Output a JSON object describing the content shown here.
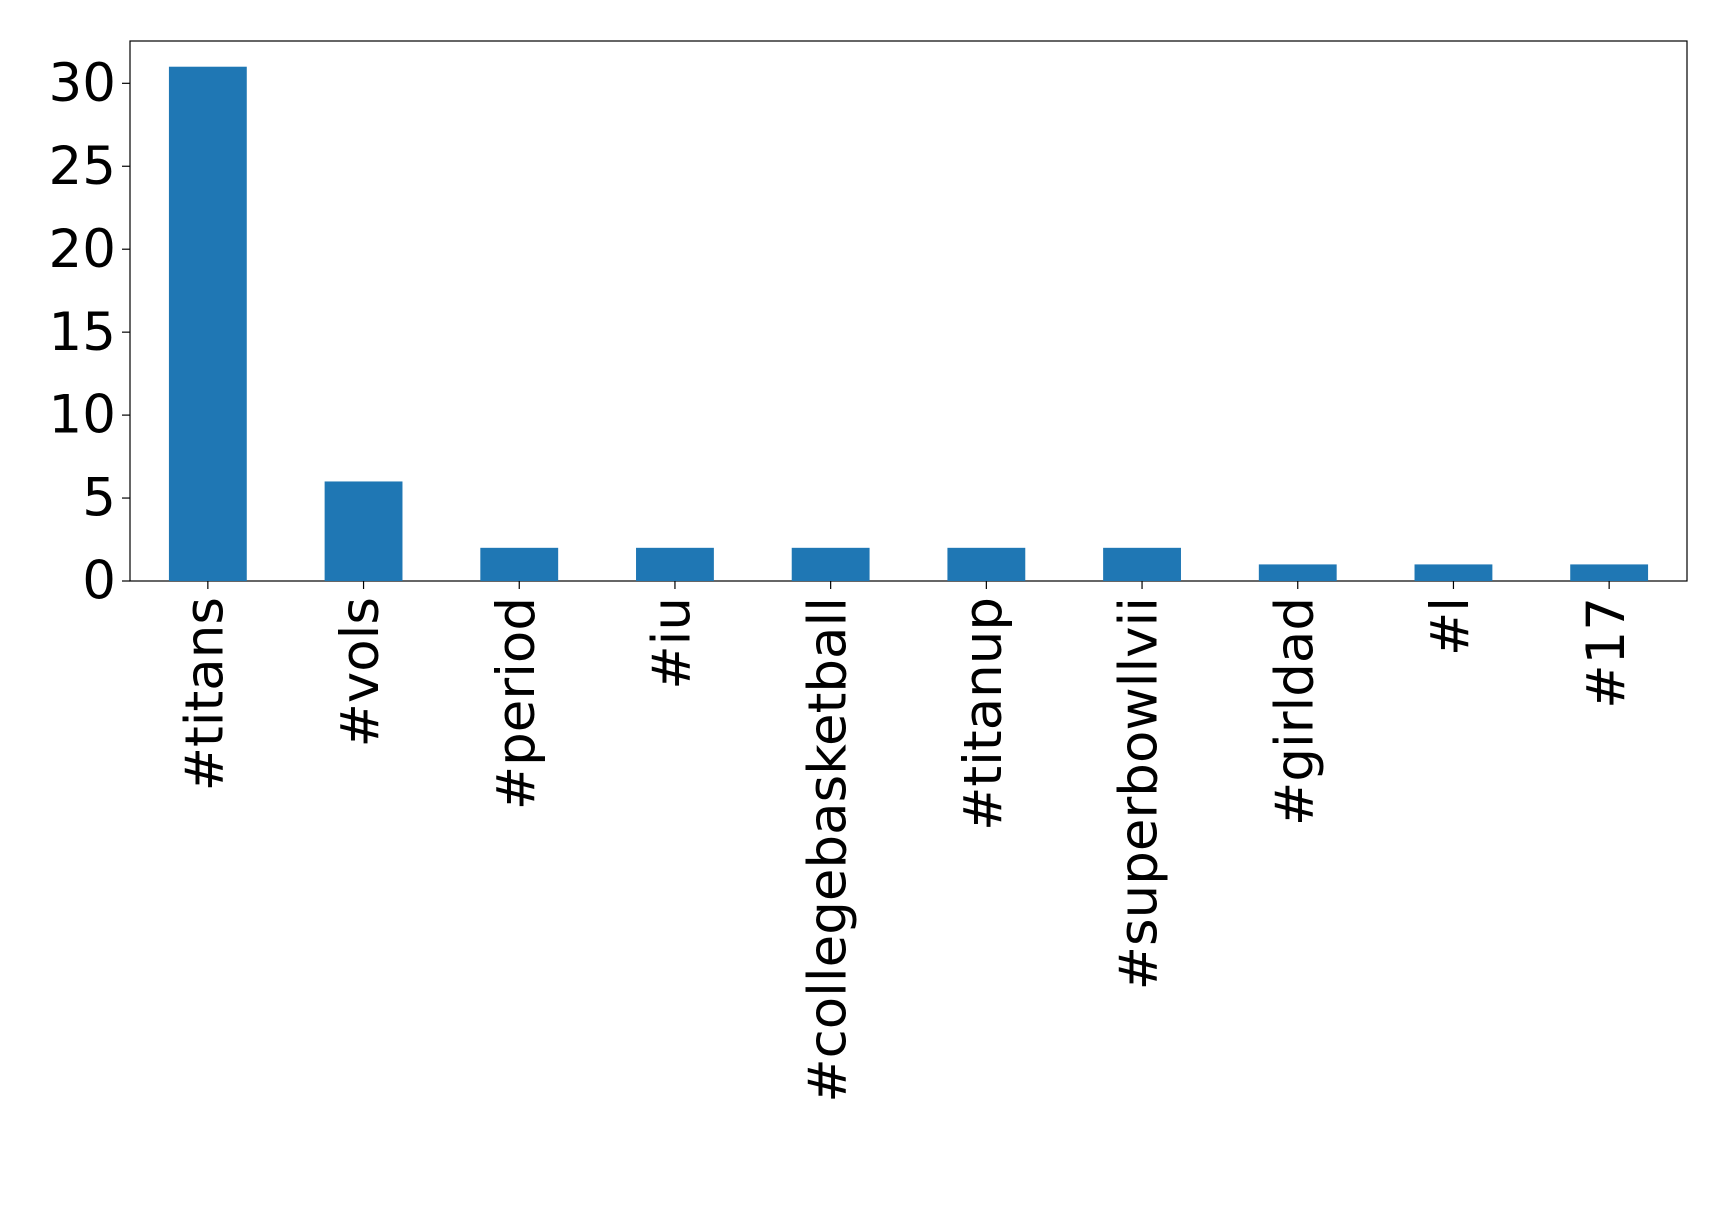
{
  "chart_data": {
    "type": "bar",
    "categories": [
      "#titans",
      "#vols",
      "#period",
      "#iu",
      "#collegebasketball",
      "#titanup",
      "#superbowllvii",
      "#girldad",
      "#l",
      "#17"
    ],
    "values": [
      31,
      6,
      2,
      2,
      2,
      2,
      2,
      1,
      1,
      1
    ],
    "color": "#1f77b4",
    "ylim": [
      0,
      32.55
    ],
    "yticks": [
      0,
      5,
      10,
      15,
      20,
      25,
      30
    ],
    "grid": false
  }
}
